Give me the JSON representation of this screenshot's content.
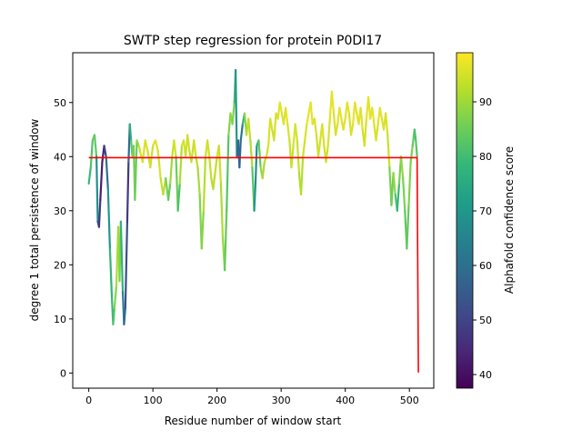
{
  "chart_data": {
    "type": "line",
    "title": "SWTP step regression for protein P0DI17",
    "xlabel": "Residue number of window start",
    "ylabel": "degree 1 total persistence of window",
    "xlim": [
      -25,
      538
    ],
    "ylim": [
      -2.8,
      59.2
    ],
    "xticks": [
      0,
      100,
      200,
      300,
      400,
      500
    ],
    "yticks": [
      0,
      10,
      20,
      30,
      40,
      50
    ],
    "grid": false,
    "series": [
      {
        "style": "line colored by Alphafold confidence score (viridis)",
        "points": [
          [
            0,
            35,
            78
          ],
          [
            3,
            38,
            80
          ],
          [
            6,
            43,
            84
          ],
          [
            9,
            44,
            85
          ],
          [
            12,
            40,
            82
          ],
          [
            14,
            28,
            55
          ],
          [
            16,
            27,
            50
          ],
          [
            18,
            32,
            45
          ],
          [
            21,
            39,
            40
          ],
          [
            24,
            42,
            45
          ],
          [
            27,
            40,
            55
          ],
          [
            30,
            34,
            65
          ],
          [
            33,
            23,
            75
          ],
          [
            36,
            14,
            80
          ],
          [
            38,
            9,
            78
          ],
          [
            40,
            12,
            85
          ],
          [
            43,
            16,
            90
          ],
          [
            46,
            27,
            92
          ],
          [
            48,
            17,
            88
          ],
          [
            50,
            28,
            85
          ],
          [
            53,
            15,
            70
          ],
          [
            55,
            9,
            60
          ],
          [
            57,
            12,
            55
          ],
          [
            60,
            28,
            50
          ],
          [
            62,
            39,
            45
          ],
          [
            64,
            46,
            72
          ],
          [
            66,
            43,
            80
          ],
          [
            68,
            40,
            85
          ],
          [
            70,
            42,
            90
          ],
          [
            72,
            32,
            82
          ],
          [
            75,
            43,
            88
          ],
          [
            78,
            42,
            92
          ],
          [
            80,
            41,
            95
          ],
          [
            84,
            39,
            95
          ],
          [
            88,
            43,
            96
          ],
          [
            92,
            41,
            95
          ],
          [
            96,
            38,
            94
          ],
          [
            100,
            42,
            95
          ],
          [
            104,
            43,
            96
          ],
          [
            108,
            41,
            96
          ],
          [
            112,
            36,
            94
          ],
          [
            116,
            33,
            93
          ],
          [
            120,
            36,
            92
          ],
          [
            124,
            32,
            80
          ],
          [
            127,
            35,
            88
          ],
          [
            130,
            40,
            92
          ],
          [
            133,
            43,
            95
          ],
          [
            136,
            40,
            95
          ],
          [
            139,
            30,
            75
          ],
          [
            142,
            35,
            88
          ],
          [
            145,
            42,
            95
          ],
          [
            148,
            43,
            96
          ],
          [
            151,
            40,
            94
          ],
          [
            154,
            44,
            95
          ],
          [
            157,
            41,
            94
          ],
          [
            160,
            39,
            93
          ],
          [
            164,
            43,
            95
          ],
          [
            167,
            40,
            94
          ],
          [
            170,
            38,
            92
          ],
          [
            173,
            33,
            90
          ],
          [
            176,
            23,
            85
          ],
          [
            179,
            30,
            90
          ],
          [
            182,
            40,
            94
          ],
          [
            185,
            43,
            95
          ],
          [
            188,
            40,
            94
          ],
          [
            191,
            36,
            93
          ],
          [
            194,
            34,
            92
          ],
          [
            197,
            37,
            93
          ],
          [
            200,
            40,
            94
          ],
          [
            203,
            42,
            95
          ],
          [
            206,
            35,
            93
          ],
          [
            209,
            25,
            90
          ],
          [
            212,
            19,
            88
          ],
          [
            215,
            30,
            80
          ],
          [
            218,
            44,
            85
          ],
          [
            221,
            48,
            90
          ],
          [
            224,
            46,
            88
          ],
          [
            227,
            50,
            86
          ],
          [
            229,
            56,
            75
          ],
          [
            231,
            40,
            65
          ],
          [
            233,
            43,
            55
          ],
          [
            235,
            38,
            60
          ],
          [
            237,
            43,
            55
          ],
          [
            240,
            46,
            70
          ],
          [
            243,
            48,
            85
          ],
          [
            246,
            44,
            92
          ],
          [
            249,
            47,
            94
          ],
          [
            252,
            43,
            93
          ],
          [
            255,
            38,
            90
          ],
          [
            258,
            30,
            75
          ],
          [
            260,
            35,
            65
          ],
          [
            262,
            42,
            70
          ],
          [
            265,
            43,
            80
          ],
          [
            268,
            38,
            88
          ],
          [
            271,
            36,
            90
          ],
          [
            274,
            39,
            92
          ],
          [
            277,
            40,
            94
          ],
          [
            280,
            42,
            95
          ],
          [
            283,
            47,
            96
          ],
          [
            286,
            45,
            95
          ],
          [
            289,
            43,
            94
          ],
          [
            292,
            48,
            96
          ],
          [
            295,
            47,
            95
          ],
          [
            298,
            50,
            97
          ],
          [
            301,
            48,
            96
          ],
          [
            304,
            46,
            95
          ],
          [
            307,
            49,
            97
          ],
          [
            310,
            46,
            96
          ],
          [
            313,
            43,
            95
          ],
          [
            316,
            38,
            93
          ],
          [
            319,
            42,
            95
          ],
          [
            322,
            46,
            96
          ],
          [
            325,
            43,
            95
          ],
          [
            328,
            37,
            93
          ],
          [
            331,
            33,
            90
          ],
          [
            334,
            40,
            94
          ],
          [
            337,
            43,
            95
          ],
          [
            340,
            46,
            96
          ],
          [
            343,
            48,
            97
          ],
          [
            346,
            50,
            97
          ],
          [
            349,
            46,
            96
          ],
          [
            352,
            47,
            96
          ],
          [
            355,
            44,
            95
          ],
          [
            358,
            40,
            94
          ],
          [
            361,
            43,
            95
          ],
          [
            364,
            46,
            96
          ],
          [
            367,
            42,
            95
          ],
          [
            370,
            39,
            94
          ],
          [
            373,
            42,
            95
          ],
          [
            376,
            47,
            96
          ],
          [
            379,
            52,
            97
          ],
          [
            382,
            48,
            96
          ],
          [
            385,
            44,
            95
          ],
          [
            388,
            46,
            96
          ],
          [
            391,
            49,
            97
          ],
          [
            394,
            47,
            96
          ],
          [
            397,
            45,
            96
          ],
          [
            400,
            47,
            96
          ],
          [
            403,
            50,
            97
          ],
          [
            406,
            48,
            96
          ],
          [
            409,
            44,
            95
          ],
          [
            412,
            46,
            96
          ],
          [
            415,
            50,
            97
          ],
          [
            418,
            48,
            96
          ],
          [
            421,
            46,
            96
          ],
          [
            424,
            49,
            97
          ],
          [
            427,
            45,
            95
          ],
          [
            430,
            42,
            94
          ],
          [
            433,
            47,
            96
          ],
          [
            436,
            51,
            97
          ],
          [
            439,
            47,
            96
          ],
          [
            442,
            49,
            97
          ],
          [
            445,
            46,
            96
          ],
          [
            448,
            43,
            95
          ],
          [
            451,
            46,
            96
          ],
          [
            454,
            49,
            97
          ],
          [
            457,
            47,
            96
          ],
          [
            460,
            45,
            95
          ],
          [
            463,
            48,
            96
          ],
          [
            466,
            44,
            95
          ],
          [
            469,
            38,
            93
          ],
          [
            472,
            31,
            80
          ],
          [
            475,
            37,
            90
          ],
          [
            478,
            33,
            88
          ],
          [
            481,
            30,
            75
          ],
          [
            484,
            35,
            82
          ],
          [
            487,
            40,
            90
          ],
          [
            490,
            36,
            88
          ],
          [
            493,
            30,
            85
          ],
          [
            496,
            23,
            82
          ],
          [
            499,
            31,
            86
          ],
          [
            502,
            39,
            88
          ],
          [
            505,
            42,
            85
          ],
          [
            508,
            45,
            82
          ],
          [
            510,
            43,
            80
          ],
          [
            512,
            40,
            85
          ]
        ]
      },
      {
        "style": "step regression (red)",
        "points": [
          [
            0,
            39.8
          ],
          [
            512,
            39.8
          ],
          [
            514,
            0.1
          ]
        ]
      }
    ],
    "colorbar": {
      "label": "Alphafold confidence score",
      "range": [
        37.5,
        99
      ],
      "ticks": [
        40,
        50,
        60,
        70,
        80,
        90
      ],
      "colormap": "viridis",
      "stops": [
        "#440154",
        "#482878",
        "#3e4a89",
        "#31688e",
        "#26828e",
        "#1f9e89",
        "#35b779",
        "#6ece58",
        "#b5de2b",
        "#fde725"
      ]
    }
  }
}
